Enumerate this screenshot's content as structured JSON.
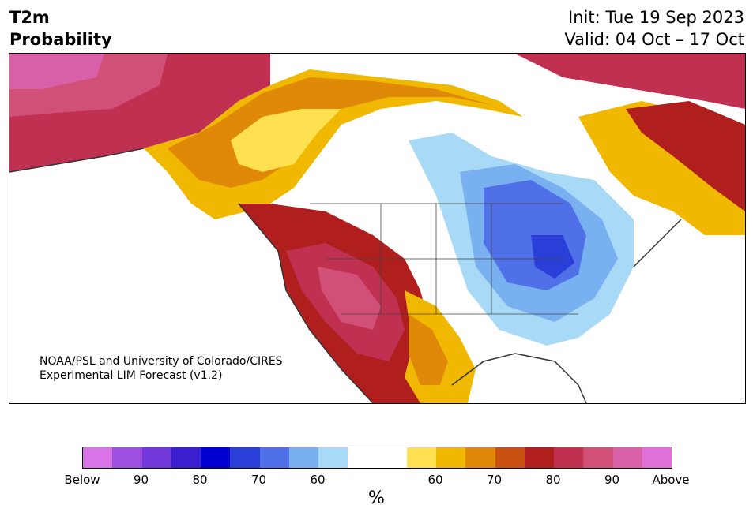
{
  "header": {
    "title_line1": "T2m",
    "title_line2": "Probability",
    "init": "Init: Tue 19 Sep 2023",
    "valid": "Valid: 04 Oct – 17 Oct"
  },
  "map": {
    "credit_line1": "NOAA/PSL and University of Colorado/CIRES",
    "credit_line2": "Experimental LIM Forecast (v1.2)"
  },
  "colorbar": {
    "colors": [
      "#d973e8",
      "#a050e0",
      "#7038d8",
      "#3a1ed0",
      "#0000d0",
      "#2a3ed8",
      "#5070e8",
      "#78b0f0",
      "#a8daf8",
      "#ffffff",
      "#ffffff",
      "#ffe050",
      "#f0b800",
      "#e08808",
      "#c85010",
      "#b01e1e",
      "#c03050",
      "#d05078",
      "#d860a8",
      "#e070d8"
    ],
    "tick_labels": [
      "Below",
      "90",
      "80",
      "70",
      "60",
      "60",
      "70",
      "80",
      "90",
      "Above"
    ],
    "unit": "%"
  },
  "colors": {
    "land_background": "#ffffff",
    "coastline": "#333333"
  }
}
